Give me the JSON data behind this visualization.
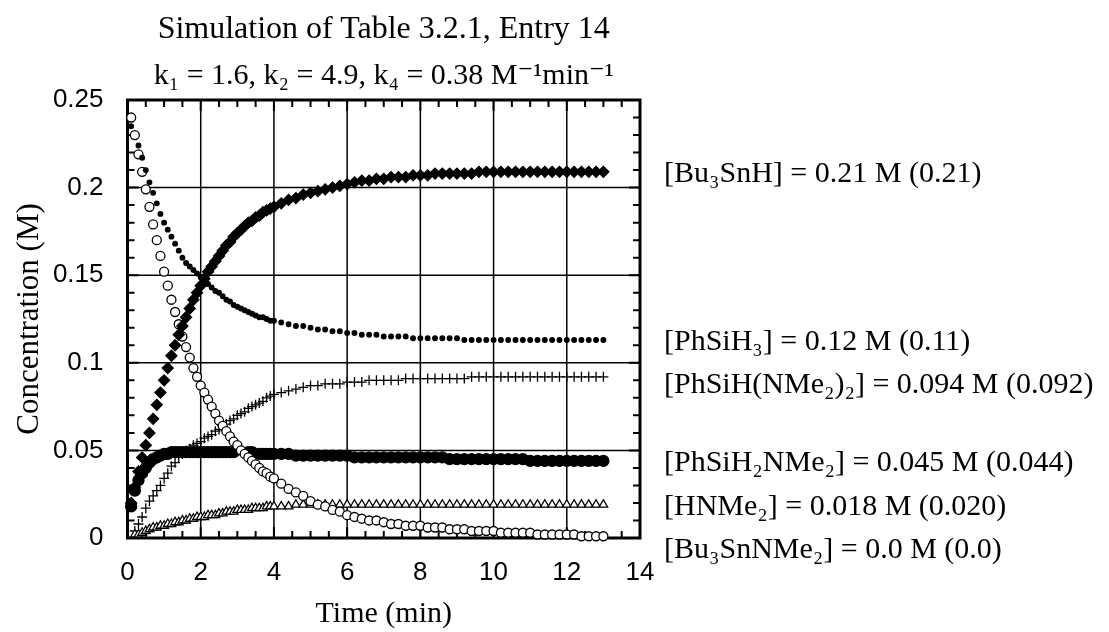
{
  "chart_data": {
    "type": "scatter",
    "title": "Simulation of Table 3.2.1, Entry 14",
    "subtitle": "k₁ = 1.6, k₂ = 4.9, k₄ = 0.38 M⁻¹min⁻¹",
    "xlabel": "Time (min)",
    "ylabel": "Concentration (M)",
    "legend": "right",
    "x": [
      0.1,
      0.2,
      0.3,
      0.4,
      0.5,
      0.6,
      0.7,
      0.8,
      0.9,
      1.0,
      1.1,
      1.2,
      1.3,
      1.4,
      1.5,
      1.6,
      1.7,
      1.8,
      1.9,
      2.0,
      2.1,
      2.2,
      2.3,
      2.4,
      2.5,
      2.6,
      2.7,
      2.8,
      2.9,
      3.0,
      3.1,
      3.2,
      3.3,
      3.4,
      3.5,
      3.6,
      3.7,
      3.8,
      3.9,
      4.0,
      4.2,
      4.4,
      4.6,
      4.8,
      5.0,
      5.2,
      5.4,
      5.6,
      5.8,
      6.0,
      6.2,
      6.4,
      6.6,
      6.8,
      7.0,
      7.2,
      7.4,
      7.6,
      7.8,
      8.0,
      8.2,
      8.4,
      8.6,
      8.8,
      9.0,
      9.2,
      9.4,
      9.6,
      9.8,
      10.0,
      10.2,
      10.4,
      10.6,
      10.8,
      11.0,
      11.2,
      11.4,
      11.6,
      11.8,
      12.0,
      12.2,
      12.4,
      12.6,
      12.8,
      13.0
    ],
    "series": [
      {
        "name": "[Bu₃SnH] = 0.21 M (0.21)",
        "color": "#000000",
        "marker": "diamond",
        "values": [
          0.02,
          0.029,
          0.038,
          0.046,
          0.053,
          0.06,
          0.068,
          0.076,
          0.083,
          0.09,
          0.097,
          0.104,
          0.11,
          0.116,
          0.121,
          0.126,
          0.131,
          0.136,
          0.14,
          0.144,
          0.148,
          0.152,
          0.155,
          0.158,
          0.161,
          0.164,
          0.167,
          0.169,
          0.172,
          0.174,
          0.176,
          0.178,
          0.18,
          0.181,
          0.183,
          0.184,
          0.186,
          0.187,
          0.188,
          0.189,
          0.191,
          0.193,
          0.194,
          0.196,
          0.197,
          0.198,
          0.199,
          0.2,
          0.201,
          0.202,
          0.203,
          0.204,
          0.204,
          0.205,
          0.205,
          0.206,
          0.206,
          0.206,
          0.207,
          0.207,
          0.207,
          0.208,
          0.208,
          0.208,
          0.208,
          0.208,
          0.208,
          0.209,
          0.209,
          0.209,
          0.209,
          0.209,
          0.209,
          0.209,
          0.209,
          0.209,
          0.209,
          0.209,
          0.209,
          0.209,
          0.209,
          0.209,
          0.209,
          0.209,
          0.209
        ]
      },
      {
        "name": "[PhSiH₃] = 0.12 M (0.11)",
        "color": "#000000",
        "marker": "circle",
        "values": [
          0.235,
          null,
          0.224,
          0.217,
          0.21,
          0.203,
          0.197,
          0.191,
          0.185,
          0.18,
          0.176,
          0.172,
          0.168,
          0.164,
          0.16,
          0.157,
          0.155,
          0.153,
          0.151,
          0.149,
          null,
          0.145,
          0.143,
          0.141,
          0.14,
          0.138,
          0.136,
          0.135,
          0.133,
          0.132,
          0.131,
          0.13,
          0.129,
          0.128,
          0.127,
          0.126,
          0.126,
          0.125,
          0.124,
          0.124,
          0.123,
          0.122,
          0.121,
          0.121,
          0.12,
          0.119,
          0.119,
          0.118,
          0.118,
          0.117,
          0.117,
          0.116,
          0.116,
          0.116,
          0.115,
          0.115,
          0.115,
          0.115,
          0.114,
          0.114,
          0.114,
          0.114,
          0.114,
          0.114,
          0.114,
          0.113,
          0.113,
          0.113,
          0.113,
          0.113,
          0.113,
          0.113,
          0.113,
          0.113,
          0.113,
          0.113,
          0.113,
          0.113,
          0.113,
          0.113,
          0.113,
          0.113,
          0.113,
          0.113,
          0.113
        ]
      },
      {
        "name": "[PhSiH(NMe₂)₂] = 0.094 M (0.092)",
        "color": "#000000",
        "marker": "cross",
        "values": [
          null,
          0.004,
          0.008,
          0.012,
          0.017,
          0.021,
          0.024,
          0.027,
          0.03,
          0.034,
          0.037,
          0.041,
          0.043,
          0.046,
          0.048,
          0.05,
          0.051,
          0.053,
          0.054,
          0.055,
          0.057,
          0.058,
          0.059,
          0.061,
          0.062,
          0.064,
          0.065,
          0.067,
          0.068,
          0.07,
          0.071,
          0.072,
          0.074,
          0.075,
          0.076,
          0.077,
          0.078,
          0.08,
          0.081,
          0.082,
          0.083,
          0.084,
          0.085,
          0.086,
          0.087,
          0.087,
          0.088,
          0.088,
          0.088,
          0.089,
          0.089,
          0.089,
          0.09,
          0.09,
          0.09,
          0.09,
          0.09,
          0.091,
          0.091,
          0.091,
          0.091,
          0.091,
          0.091,
          0.091,
          0.091,
          0.091,
          0.092,
          0.092,
          0.092,
          0.092,
          0.092,
          0.092,
          0.092,
          0.092,
          0.092,
          0.092,
          0.092,
          0.092,
          0.092,
          0.092,
          0.092,
          0.092,
          0.092,
          0.092,
          0.092
        ]
      },
      {
        "name": "[PhSiH₂NMe₂] = 0.045 M (0.044)",
        "color": "#000000",
        "marker": "circle",
        "values": [
          0.018,
          0.027,
          0.033,
          0.037,
          0.04,
          0.043,
          0.045,
          0.046,
          0.047,
          0.048,
          0.048,
          0.049,
          0.049,
          0.049,
          0.049,
          0.049,
          0.049,
          0.049,
          0.049,
          0.049,
          0.049,
          0.049,
          0.049,
          0.049,
          0.049,
          0.049,
          0.049,
          0.049,
          0.049,
          null,
          null,
          null,
          0.049,
          0.049,
          null,
          0.048,
          0.048,
          0.048,
          0.048,
          0.048,
          0.048,
          0.048,
          0.047,
          0.047,
          0.047,
          0.047,
          0.047,
          0.047,
          0.047,
          0.047,
          0.046,
          0.046,
          0.046,
          0.046,
          0.046,
          0.046,
          0.046,
          0.046,
          0.046,
          0.046,
          0.046,
          0.046,
          0.046,
          0.045,
          0.045,
          0.045,
          0.045,
          0.045,
          0.045,
          0.045,
          0.045,
          0.045,
          0.045,
          0.045,
          0.044,
          0.044,
          0.044,
          0.044,
          0.044,
          0.044,
          0.044,
          0.044,
          0.044,
          0.044,
          0.044
        ]
      },
      {
        "name": "[HNMe₂] = 0.018 M (0.020)",
        "color": "#000000",
        "marker": "triangle",
        "values": [
          null,
          0.002,
          0.002,
          0.003,
          0.004,
          0.005,
          0.006,
          0.006,
          0.007,
          0.007,
          0.008,
          0.008,
          0.009,
          0.009,
          0.01,
          0.01,
          0.011,
          0.011,
          0.012,
          0.012,
          0.012,
          0.013,
          0.013,
          0.013,
          0.014,
          0.014,
          0.015,
          0.015,
          0.015,
          0.016,
          0.016,
          0.016,
          0.016,
          0.017,
          0.017,
          0.017,
          0.017,
          0.018,
          0.018,
          0.018,
          0.018,
          0.018,
          0.019,
          0.019,
          0.019,
          0.019,
          0.019,
          0.019,
          0.019,
          0.019,
          0.019,
          0.019,
          0.019,
          0.019,
          0.019,
          0.019,
          0.019,
          0.019,
          0.019,
          0.019,
          0.019,
          0.019,
          0.019,
          0.019,
          0.019,
          0.019,
          0.019,
          0.019,
          0.019,
          0.019,
          0.019,
          0.019,
          0.019,
          0.019,
          0.019,
          0.019,
          0.019,
          0.019,
          0.019,
          0.019,
          0.019,
          0.019,
          0.019,
          0.019,
          0.019
        ]
      },
      {
        "name": "[Bu₃SnNMe₂] = 0.0 M (0.0)",
        "color": "#000000",
        "marker": "circle",
        "values": [
          0.24,
          0.23,
          0.219,
          0.209,
          0.199,
          0.189,
          0.179,
          0.17,
          0.161,
          0.152,
          0.144,
          0.136,
          0.129,
          0.122,
          0.115,
          0.109,
          0.103,
          0.097,
          0.092,
          0.087,
          0.083,
          0.079,
          0.075,
          0.071,
          0.067,
          0.064,
          0.061,
          0.058,
          0.055,
          0.053,
          0.05,
          0.048,
          0.046,
          0.044,
          0.042,
          0.04,
          0.038,
          0.037,
          0.035,
          0.034,
          0.031,
          0.028,
          0.026,
          0.024,
          0.021,
          0.019,
          0.018,
          0.016,
          0.015,
          0.013,
          0.012,
          0.011,
          0.01,
          0.01,
          0.009,
          0.008,
          0.008,
          0.007,
          0.007,
          0.007,
          0.006,
          0.006,
          0.006,
          0.005,
          0.005,
          0.005,
          0.004,
          0.004,
          0.004,
          0.004,
          0.003,
          0.003,
          0.003,
          0.003,
          0.003,
          0.002,
          0.002,
          0.002,
          0.002,
          0.002,
          0.002,
          0.001,
          0.001,
          0.001,
          0.001
        ]
      }
    ],
    "xlim": [
      0,
      14
    ],
    "ylim": [
      0,
      0.25
    ],
    "xticks": [
      0,
      {
        "value": 0.5,
        "label": null
      },
      {
        "value": 1,
        "label": null
      },
      {
        "value": 1.5,
        "label": null
      },
      2,
      {
        "value": 2.5,
        "label": null
      },
      {
        "value": 3,
        "label": null
      },
      {
        "value": 3.5,
        "label": null
      },
      4,
      {
        "value": 4.5,
        "label": null
      },
      {
        "value": 5,
        "label": null
      },
      {
        "value": 5.5,
        "label": null
      },
      6,
      {
        "value": 6.5,
        "label": null
      },
      {
        "value": 7,
        "label": null
      },
      {
        "value": 7.5,
        "label": null
      },
      8,
      {
        "value": 8.5,
        "label": null
      },
      {
        "value": 9,
        "label": null
      },
      {
        "value": 9.5,
        "label": null
      },
      10,
      {
        "value": 10.5,
        "label": null
      },
      {
        "value": 11,
        "label": null
      },
      {
        "value": 11.5,
        "label": null
      },
      12,
      {
        "value": 12.5,
        "label": null
      },
      {
        "value": 13,
        "label": null
      },
      {
        "value": 13.5,
        "label": null
      },
      14
    ],
    "yticks": [
      0,
      {
        "value": 0.01,
        "label": null
      },
      {
        "value": 0.02,
        "label": null
      },
      {
        "value": 0.03,
        "label": null
      },
      {
        "value": 0.04,
        "label": null
      },
      0.05,
      {
        "value": 0.06,
        "label": null
      },
      {
        "value": 0.07,
        "label": null
      },
      {
        "value": 0.08,
        "label": null
      },
      {
        "value": 0.09,
        "label": null
      },
      0.1,
      {
        "value": 0.11,
        "label": null
      },
      {
        "value": 0.12,
        "label": null
      },
      {
        "value": 0.13,
        "label": null
      },
      {
        "value": 0.14,
        "label": null
      },
      0.15,
      {
        "value": 0.16,
        "label": null
      },
      {
        "value": 0.17,
        "label": null
      },
      {
        "value": 0.18,
        "label": null
      },
      {
        "value": 0.19,
        "label": null
      },
      0.2,
      {
        "value": 0.21,
        "label": null
      },
      {
        "value": 0.22,
        "label": null
      },
      {
        "value": 0.23,
        "label": null
      },
      {
        "value": 0.24,
        "label": null
      },
      0.25
    ],
    "grid": true
  }
}
